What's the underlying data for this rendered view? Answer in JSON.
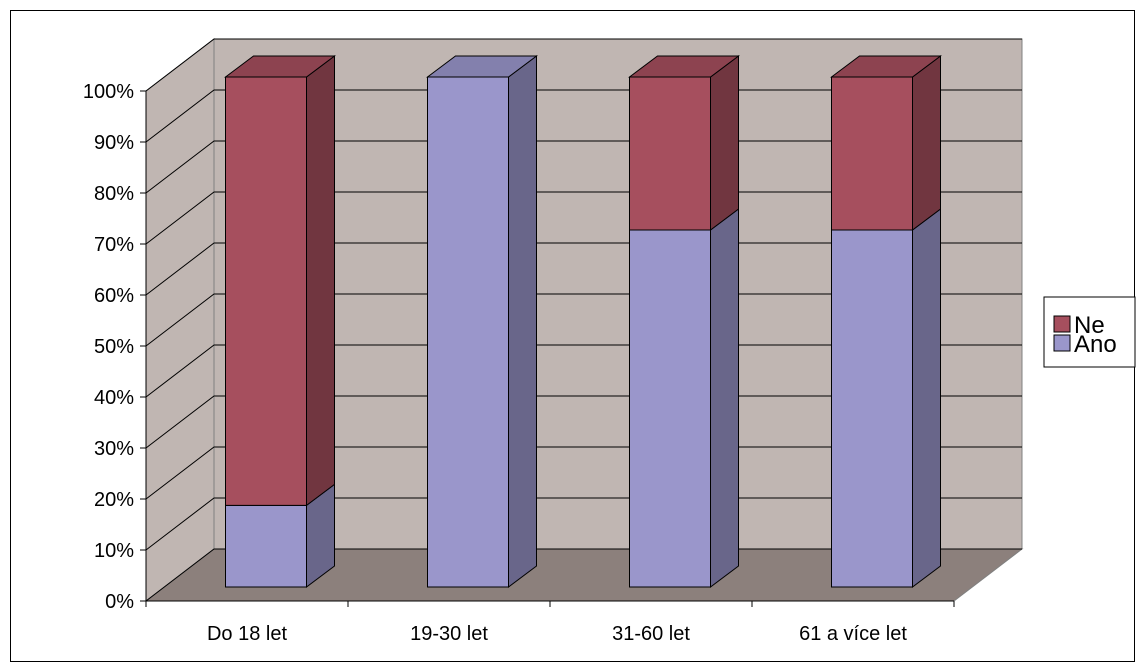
{
  "chart_data": {
    "type": "bar",
    "stacked": true,
    "percent_stacked": true,
    "three_d": true,
    "categories": [
      "Do 18 let",
      "19-30 let",
      "31-60 let",
      "61 a více let"
    ],
    "series": [
      {
        "name": "Ano",
        "values": [
          16,
          100,
          70,
          70
        ],
        "color": "#9A96CB"
      },
      {
        "name": "Ne",
        "values": [
          84,
          0,
          30,
          30
        ],
        "color": "#A64F5E"
      }
    ],
    "y_ticks": [
      "0%",
      "10%",
      "20%",
      "30%",
      "40%",
      "50%",
      "60%",
      "70%",
      "80%",
      "90%",
      "100%"
    ],
    "ylim": [
      0,
      100
    ],
    "grid": true,
    "legend_position": "right",
    "colors": {
      "wall": "#C0B6B2",
      "floor": "#8C807C"
    }
  }
}
